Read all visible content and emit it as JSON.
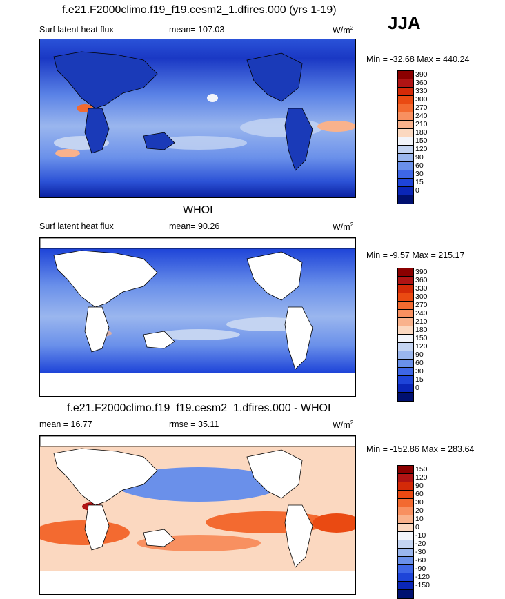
{
  "season": "JJA",
  "panels": [
    {
      "title": "f.e21.F2000climo.f19_f19.cesm2_1.dfires.000 (yrs 1-19)",
      "left_label": "Surf latent heat flux",
      "center_label": "mean= 107.03",
      "units": "W/m",
      "units_sup": "2",
      "minmax": "Min = -32.68 Max = 440.24",
      "colorbar": {
        "labels": [
          "390",
          "360",
          "330",
          "300",
          "270",
          "240",
          "210",
          "180",
          "150",
          "120",
          "90",
          "60",
          "30",
          "15",
          "0"
        ],
        "colors": [
          "#8b0000",
          "#b01414",
          "#d42a08",
          "#ea4a12",
          "#f36a30",
          "#f89060",
          "#f9b28c",
          "#fbd8c0",
          "#f2f4fa",
          "#c4d4f2",
          "#9ab6ee",
          "#6a90ea",
          "#3e66e6",
          "#1e44d8",
          "#0a26b8",
          "#001070"
        ]
      }
    },
    {
      "title": "WHOI",
      "left_label": "Surf latent heat flux",
      "center_label": "mean=  90.26",
      "units": "W/m",
      "units_sup": "2",
      "minmax": "Min =  -9.57 Max = 215.17",
      "colorbar": {
        "labels": [
          "390",
          "360",
          "330",
          "300",
          "270",
          "240",
          "210",
          "180",
          "150",
          "120",
          "90",
          "60",
          "30",
          "15",
          "0"
        ],
        "colors": [
          "#8b0000",
          "#b01414",
          "#d42a08",
          "#ea4a12",
          "#f36a30",
          "#f89060",
          "#f9b28c",
          "#fbd8c0",
          "#f2f4fa",
          "#c4d4f2",
          "#9ab6ee",
          "#6a90ea",
          "#3e66e6",
          "#1e44d8",
          "#0a26b8",
          "#001070"
        ]
      }
    },
    {
      "title": "f.e21.F2000climo.f19_f19.cesm2_1.dfires.000 - WHOI",
      "left_label": "mean =  16.77",
      "center_label": "rmse =  35.11",
      "units": "W/m",
      "units_sup": "2",
      "minmax": "Min = -152.86 Max = 283.64",
      "colorbar": {
        "labels": [
          "150",
          "120",
          "90",
          "60",
          "30",
          "20",
          "10",
          "0",
          "-10",
          "-20",
          "-30",
          "-60",
          "-90",
          "-120",
          "-150"
        ],
        "colors": [
          "#8b0000",
          "#b01414",
          "#d42a08",
          "#ea4a12",
          "#f36a30",
          "#f89060",
          "#f9b28c",
          "#fbd8c0",
          "#f2f4fa",
          "#c4d4f2",
          "#9ab6ee",
          "#6a90ea",
          "#3e66e6",
          "#1e44d8",
          "#0a26b8",
          "#001070"
        ]
      }
    }
  ]
}
